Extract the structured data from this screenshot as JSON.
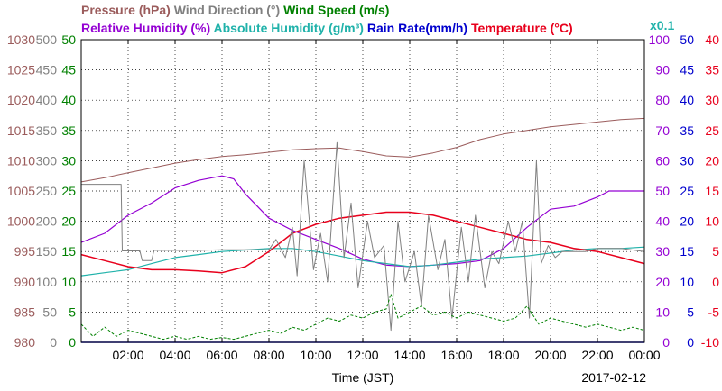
{
  "chart_data": {
    "type": "line",
    "legend_rows": [
      [
        {
          "key": "pressure",
          "label": "Pressure (hPa)",
          "color": "#9B5C5C"
        },
        {
          "key": "wind_direction",
          "label": "Wind Direction (°)",
          "color": "#808080"
        },
        {
          "key": "wind_speed",
          "label": "Wind Speed (m/s)",
          "color": "#008000"
        }
      ],
      [
        {
          "key": "humidity",
          "label": "Relative Humidity (%)",
          "color": "#9400D3"
        },
        {
          "key": "abs_humidity",
          "label": "Absolute Humidity (g/m³)",
          "color": "#20B2AA"
        },
        {
          "key": "rain_rate",
          "label": "Rain Rate(mm/h)",
          "color": "#0000CD"
        },
        {
          "key": "temperature",
          "label": "Temperature (°C)",
          "color": "#E8001C"
        }
      ]
    ],
    "abs_humidity_scale_note": "x0.1",
    "xlabel": "Time (JST)",
    "date": "2017-02-12",
    "x_hours_range": [
      0,
      24
    ],
    "x_tick_hours": [
      2,
      4,
      6,
      8,
      10,
      12,
      14,
      16,
      18,
      20,
      22,
      24
    ],
    "x_tick_labels": [
      "02:00",
      "04:00",
      "06:00",
      "08:00",
      "10:00",
      "12:00",
      "14:00",
      "16:00",
      "18:00",
      "20:00",
      "22:00",
      "00:00"
    ],
    "grid": true,
    "axes": {
      "pressure": {
        "color": "#9B5C5C",
        "side": "left",
        "range": [
          980,
          1030
        ],
        "ticks": [
          980,
          985,
          990,
          995,
          1000,
          1005,
          1010,
          1015,
          1020,
          1025,
          1030
        ]
      },
      "wind_direction": {
        "color": "#808080",
        "side": "left",
        "range": [
          0,
          500
        ],
        "ticks": [
          0,
          50,
          100,
          150,
          200,
          250,
          300,
          350,
          400,
          450,
          500
        ]
      },
      "wind_speed": {
        "color": "#008000",
        "side": "left",
        "range": [
          0,
          50
        ],
        "ticks": [
          0,
          5,
          10,
          15,
          20,
          25,
          30,
          35,
          40,
          45,
          50
        ]
      },
      "humidity": {
        "color": "#9400D3",
        "side": "right",
        "range": [
          0,
          100
        ],
        "ticks": [
          0,
          10,
          20,
          30,
          40,
          50,
          60,
          70,
          80,
          90,
          100
        ]
      },
      "rain_rate": {
        "color": "#0000CD",
        "side": "right",
        "range": [
          0,
          50
        ],
        "ticks": [
          0,
          5,
          10,
          15,
          20,
          25,
          30,
          35,
          40,
          45,
          50
        ]
      },
      "temperature": {
        "color": "#E8001C",
        "side": "right",
        "range": [
          -10,
          40
        ],
        "ticks": [
          -10,
          -5,
          0,
          5,
          10,
          15,
          20,
          25,
          30,
          35,
          40
        ]
      }
    },
    "series": [
      {
        "key": "pressure",
        "name": "Pressure (hPa)",
        "axis": "pressure",
        "color": "#9B5C5C",
        "x": [
          0,
          1,
          2,
          3,
          4,
          5,
          6,
          7,
          8,
          9,
          10,
          11,
          12,
          13,
          14,
          15,
          16,
          17,
          18,
          19,
          20,
          21,
          22,
          23,
          24
        ],
        "y": [
          1006.5,
          1007.2,
          1008,
          1008.8,
          1009.6,
          1010.2,
          1010.7,
          1011,
          1011.4,
          1011.8,
          1012,
          1012.1,
          1011.5,
          1010.8,
          1010.6,
          1011.3,
          1012.2,
          1013.5,
          1014.4,
          1015,
          1015.6,
          1016,
          1016.4,
          1016.8,
          1017
        ]
      },
      {
        "key": "humidity",
        "name": "Relative Humidity (%)",
        "axis": "humidity",
        "color": "#9400D3",
        "x": [
          0,
          1,
          2,
          3,
          4,
          5,
          6,
          6.5,
          7,
          8,
          9,
          10,
          11,
          12,
          13,
          14,
          15,
          16,
          17,
          18,
          19,
          19.5,
          20,
          21,
          22,
          22.5,
          23,
          24
        ],
        "y": [
          33,
          36,
          42,
          46,
          51,
          53.5,
          55,
          54,
          49,
          41,
          37,
          34,
          31,
          27.5,
          25.5,
          25,
          25.5,
          26,
          27,
          31,
          38,
          41,
          44,
          45,
          48,
          50,
          50,
          50
        ]
      },
      {
        "key": "abs_humidity",
        "name": "Absolute Humidity (g/m³)",
        "axis": "humidity",
        "color": "#20B2AA",
        "x": [
          0,
          1,
          2,
          3,
          4,
          5,
          6,
          7,
          8,
          9,
          10,
          11,
          12,
          13,
          14,
          15,
          16,
          17,
          18,
          19,
          20,
          21,
          22,
          23,
          24
        ],
        "y": [
          22,
          23,
          24,
          26,
          28,
          29,
          30,
          30.5,
          31,
          31,
          30,
          28.5,
          27,
          26,
          25,
          25.5,
          26.5,
          27.5,
          28,
          28.5,
          29.5,
          30.5,
          31,
          31,
          31.5
        ]
      },
      {
        "key": "temperature",
        "name": "Temperature (°C)",
        "axis": "temperature",
        "color": "#E8001C",
        "x": [
          0,
          1,
          2,
          3,
          4,
          5,
          6,
          7,
          8,
          9,
          10,
          11,
          12,
          13,
          14,
          15,
          16,
          17,
          18,
          19,
          20,
          21,
          22,
          23,
          24
        ],
        "y": [
          4.5,
          3.5,
          2.5,
          2,
          2,
          1.8,
          1.5,
          2.5,
          5,
          8,
          9.5,
          10.5,
          11,
          11.5,
          11.5,
          11,
          10,
          9,
          8,
          7,
          6.5,
          5.5,
          5,
          4,
          3
        ]
      },
      {
        "key": "wind_direction",
        "name": "Wind Direction (°)",
        "axis": "wind_direction",
        "color": "#808080",
        "x": [
          0,
          1.7,
          1.75,
          2.5,
          2.6,
          3,
          3.1,
          4,
          5,
          6,
          7,
          8,
          8.3,
          8.7,
          9,
          9.2,
          9.5,
          9.9,
          10.2,
          10.5,
          10.9,
          11.2,
          11.5,
          11.8,
          12.2,
          12.5,
          12.9,
          13.2,
          13.5,
          13.8,
          14.2,
          14.5,
          14.8,
          15.2,
          15.5,
          15.8,
          16.2,
          16.5,
          16.8,
          17.2,
          17.5,
          17.8,
          18.2,
          18.5,
          18.8,
          19.1,
          19.4,
          19.6,
          19.9,
          20.2,
          20.5,
          21,
          21.5,
          22,
          23,
          24
        ],
        "y": [
          261,
          261,
          151,
          151,
          135,
          135,
          152,
          152,
          152,
          153,
          153,
          153,
          170,
          140,
          190,
          110,
          300,
          120,
          180,
          100,
          330,
          140,
          230,
          90,
          200,
          140,
          160,
          20,
          200,
          100,
          150,
          60,
          210,
          120,
          170,
          40,
          190,
          100,
          210,
          90,
          150,
          130,
          200,
          150,
          200,
          40,
          300,
          130,
          160,
          140,
          150,
          150,
          150,
          155,
          155,
          150
        ]
      },
      {
        "key": "wind_speed",
        "name": "Wind Speed (m/s)",
        "axis": "wind_speed",
        "color": "#008000",
        "x": [
          0,
          0.5,
          1,
          1.5,
          2,
          2.5,
          3,
          3.5,
          4,
          4.5,
          5,
          5.5,
          6,
          6.5,
          7,
          7.5,
          8,
          8.5,
          9,
          9.5,
          10,
          10.5,
          11,
          11.5,
          12,
          12.5,
          13,
          13.2,
          13.5,
          14,
          14.5,
          15,
          15.5,
          16,
          16.5,
          17,
          17.5,
          18,
          18.5,
          19,
          19.5,
          20,
          20.5,
          21,
          21.5,
          22,
          22.5,
          23,
          23.5,
          24
        ],
        "y": [
          3,
          1,
          2.5,
          1,
          2,
          1.5,
          1,
          0.5,
          1,
          0.5,
          1,
          0.5,
          0.8,
          0.5,
          1,
          1.5,
          2,
          1.5,
          2.5,
          2,
          3,
          4,
          3.5,
          4.5,
          4,
          5,
          5.5,
          8,
          4,
          5,
          6,
          4.5,
          5,
          4,
          5,
          4.5,
          4,
          3.5,
          4,
          6,
          3,
          4,
          3.5,
          3,
          2.5,
          3,
          2.5,
          2,
          2.5,
          2
        ]
      },
      {
        "key": "rain_rate",
        "name": "Rain Rate(mm/h)",
        "axis": "rain_rate",
        "color": "#0000CD",
        "x": [
          0,
          24
        ],
        "y": [
          0,
          0
        ]
      }
    ]
  }
}
